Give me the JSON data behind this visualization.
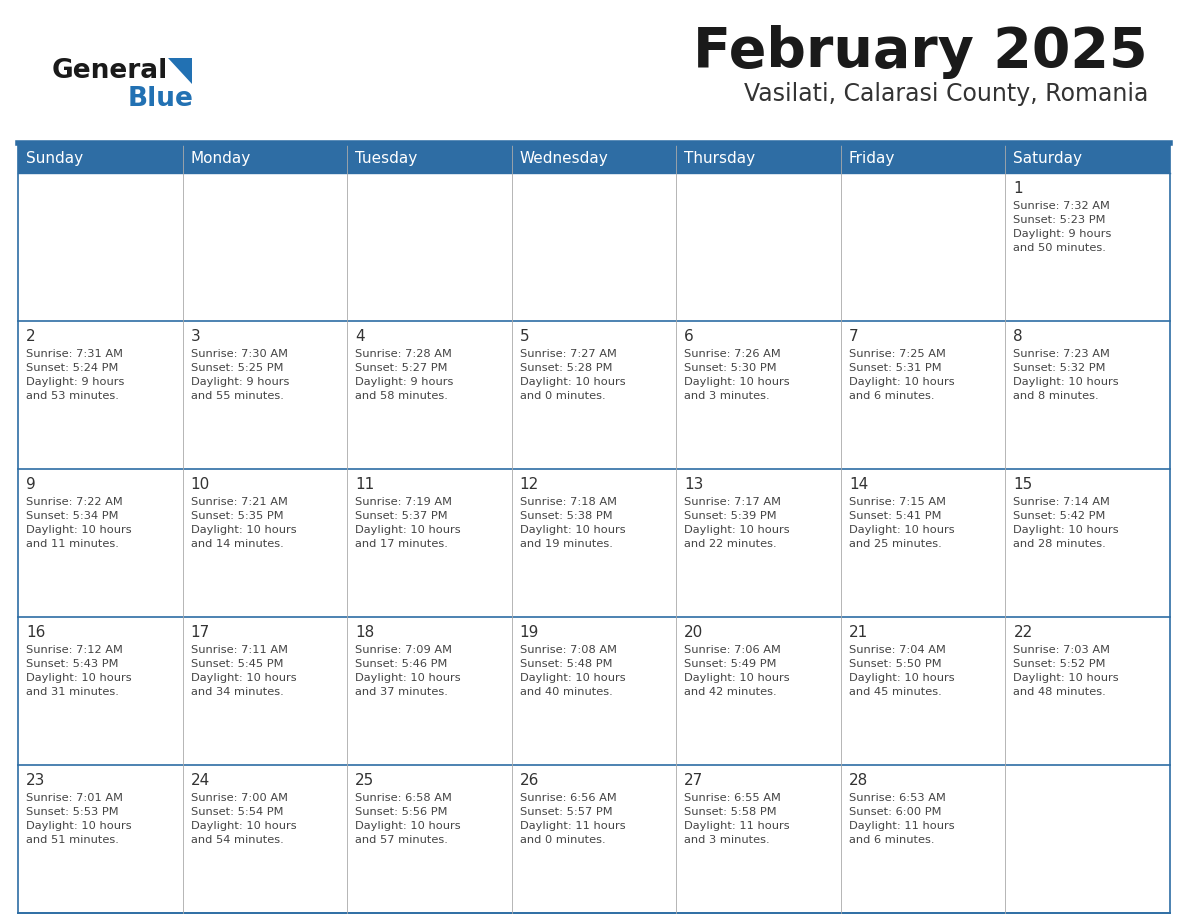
{
  "title": "February 2025",
  "subtitle": "Vasilati, Calarasi County, Romania",
  "days_of_week": [
    "Sunday",
    "Monday",
    "Tuesday",
    "Wednesday",
    "Thursday",
    "Friday",
    "Saturday"
  ],
  "header_bg": "#2E6DA4",
  "header_text": "#FFFFFF",
  "cell_bg": "#FFFFFF",
  "row_sep_color": "#2E6DA4",
  "col_sep_color": "#CCCCCC",
  "outer_border_color": "#2E6DA4",
  "day_number_color": "#333333",
  "cell_text_color": "#444444",
  "title_color": "#1A1A1A",
  "subtitle_color": "#333333",
  "logo_general_color": "#1A1A1A",
  "logo_blue_color": "#2271B3",
  "calendar_data": [
    [
      null,
      null,
      null,
      null,
      null,
      null,
      {
        "day": 1,
        "sunrise": "7:32 AM",
        "sunset": "5:23 PM",
        "daylight": "9 hours and 50 minutes."
      }
    ],
    [
      {
        "day": 2,
        "sunrise": "7:31 AM",
        "sunset": "5:24 PM",
        "daylight": "9 hours and 53 minutes."
      },
      {
        "day": 3,
        "sunrise": "7:30 AM",
        "sunset": "5:25 PM",
        "daylight": "9 hours and 55 minutes."
      },
      {
        "day": 4,
        "sunrise": "7:28 AM",
        "sunset": "5:27 PM",
        "daylight": "9 hours and 58 minutes."
      },
      {
        "day": 5,
        "sunrise": "7:27 AM",
        "sunset": "5:28 PM",
        "daylight": "10 hours and 0 minutes."
      },
      {
        "day": 6,
        "sunrise": "7:26 AM",
        "sunset": "5:30 PM",
        "daylight": "10 hours and 3 minutes."
      },
      {
        "day": 7,
        "sunrise": "7:25 AM",
        "sunset": "5:31 PM",
        "daylight": "10 hours and 6 minutes."
      },
      {
        "day": 8,
        "sunrise": "7:23 AM",
        "sunset": "5:32 PM",
        "daylight": "10 hours and 8 minutes."
      }
    ],
    [
      {
        "day": 9,
        "sunrise": "7:22 AM",
        "sunset": "5:34 PM",
        "daylight": "10 hours and 11 minutes."
      },
      {
        "day": 10,
        "sunrise": "7:21 AM",
        "sunset": "5:35 PM",
        "daylight": "10 hours and 14 minutes."
      },
      {
        "day": 11,
        "sunrise": "7:19 AM",
        "sunset": "5:37 PM",
        "daylight": "10 hours and 17 minutes."
      },
      {
        "day": 12,
        "sunrise": "7:18 AM",
        "sunset": "5:38 PM",
        "daylight": "10 hours and 19 minutes."
      },
      {
        "day": 13,
        "sunrise": "7:17 AM",
        "sunset": "5:39 PM",
        "daylight": "10 hours and 22 minutes."
      },
      {
        "day": 14,
        "sunrise": "7:15 AM",
        "sunset": "5:41 PM",
        "daylight": "10 hours and 25 minutes."
      },
      {
        "day": 15,
        "sunrise": "7:14 AM",
        "sunset": "5:42 PM",
        "daylight": "10 hours and 28 minutes."
      }
    ],
    [
      {
        "day": 16,
        "sunrise": "7:12 AM",
        "sunset": "5:43 PM",
        "daylight": "10 hours and 31 minutes."
      },
      {
        "day": 17,
        "sunrise": "7:11 AM",
        "sunset": "5:45 PM",
        "daylight": "10 hours and 34 minutes."
      },
      {
        "day": 18,
        "sunrise": "7:09 AM",
        "sunset": "5:46 PM",
        "daylight": "10 hours and 37 minutes."
      },
      {
        "day": 19,
        "sunrise": "7:08 AM",
        "sunset": "5:48 PM",
        "daylight": "10 hours and 40 minutes."
      },
      {
        "day": 20,
        "sunrise": "7:06 AM",
        "sunset": "5:49 PM",
        "daylight": "10 hours and 42 minutes."
      },
      {
        "day": 21,
        "sunrise": "7:04 AM",
        "sunset": "5:50 PM",
        "daylight": "10 hours and 45 minutes."
      },
      {
        "day": 22,
        "sunrise": "7:03 AM",
        "sunset": "5:52 PM",
        "daylight": "10 hours and 48 minutes."
      }
    ],
    [
      {
        "day": 23,
        "sunrise": "7:01 AM",
        "sunset": "5:53 PM",
        "daylight": "10 hours and 51 minutes."
      },
      {
        "day": 24,
        "sunrise": "7:00 AM",
        "sunset": "5:54 PM",
        "daylight": "10 hours and 54 minutes."
      },
      {
        "day": 25,
        "sunrise": "6:58 AM",
        "sunset": "5:56 PM",
        "daylight": "10 hours and 57 minutes."
      },
      {
        "day": 26,
        "sunrise": "6:56 AM",
        "sunset": "5:57 PM",
        "daylight": "11 hours and 0 minutes."
      },
      {
        "day": 27,
        "sunrise": "6:55 AM",
        "sunset": "5:58 PM",
        "daylight": "11 hours and 3 minutes."
      },
      {
        "day": 28,
        "sunrise": "6:53 AM",
        "sunset": "6:00 PM",
        "daylight": "11 hours and 6 minutes."
      },
      null
    ]
  ]
}
